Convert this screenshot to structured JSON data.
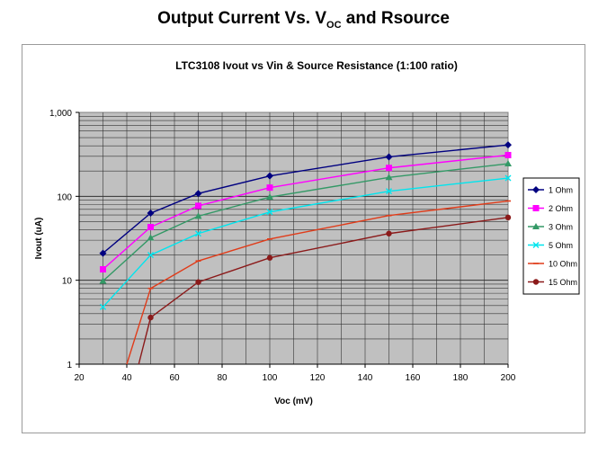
{
  "slide": {
    "title_main": "Output Current Vs. V",
    "title_sub": "OC",
    "title_tail": " and Rsource"
  },
  "chart_data": {
    "type": "line",
    "title": "LTC3108 Ivout vs Vin & Source Resistance (1:100 ratio)",
    "xlabel": "Voc (mV)",
    "ylabel": "Ivout (uA)",
    "xlim": [
      20,
      200
    ],
    "ylim": [
      1,
      1000
    ],
    "y_scale": "log",
    "x_ticks": [
      20,
      40,
      60,
      80,
      100,
      120,
      140,
      160,
      180,
      200
    ],
    "y_ticks": [
      1,
      10,
      100,
      1000
    ],
    "y_tick_labels": [
      "1",
      "10",
      "100",
      "1,000"
    ],
    "grid": true,
    "plot_background": "#c0c0c0",
    "legend_position": "right",
    "series": [
      {
        "name": "1 Ohm",
        "color": "#000080",
        "marker": "diamond",
        "x": [
          30,
          50,
          70,
          100,
          150,
          200
        ],
        "y": [
          21,
          63,
          108,
          175,
          295,
          410
        ]
      },
      {
        "name": "2 Ohm",
        "color": "#ff00ff",
        "marker": "square",
        "x": [
          30,
          50,
          70,
          100,
          150,
          200
        ],
        "y": [
          13.5,
          43,
          77,
          127,
          218,
          310
        ]
      },
      {
        "name": "3 Ohm",
        "color": "#339966",
        "marker": "triangle",
        "x": [
          30,
          50,
          70,
          100,
          150,
          200
        ],
        "y": [
          9.8,
          32,
          58,
          98,
          168,
          245
        ]
      },
      {
        "name": "5 Ohm",
        "color": "#00e5ee",
        "marker": "x",
        "x": [
          30,
          50,
          70,
          100,
          150,
          200
        ],
        "y": [
          4.8,
          20,
          36,
          65,
          115,
          165
        ]
      },
      {
        "name": "10 Ohm",
        "color": "#e03c1a",
        "marker": "dash",
        "x": [
          40,
          50,
          70,
          100,
          150,
          200
        ],
        "y": [
          1,
          8,
          17,
          31,
          59,
          88
        ]
      },
      {
        "name": "15 Ohm",
        "color": "#8b1a1a",
        "marker": "circle",
        "x": [
          45,
          50,
          70,
          100,
          150,
          200
        ],
        "y": [
          1,
          3.6,
          9.5,
          18.5,
          36,
          56
        ]
      }
    ]
  }
}
